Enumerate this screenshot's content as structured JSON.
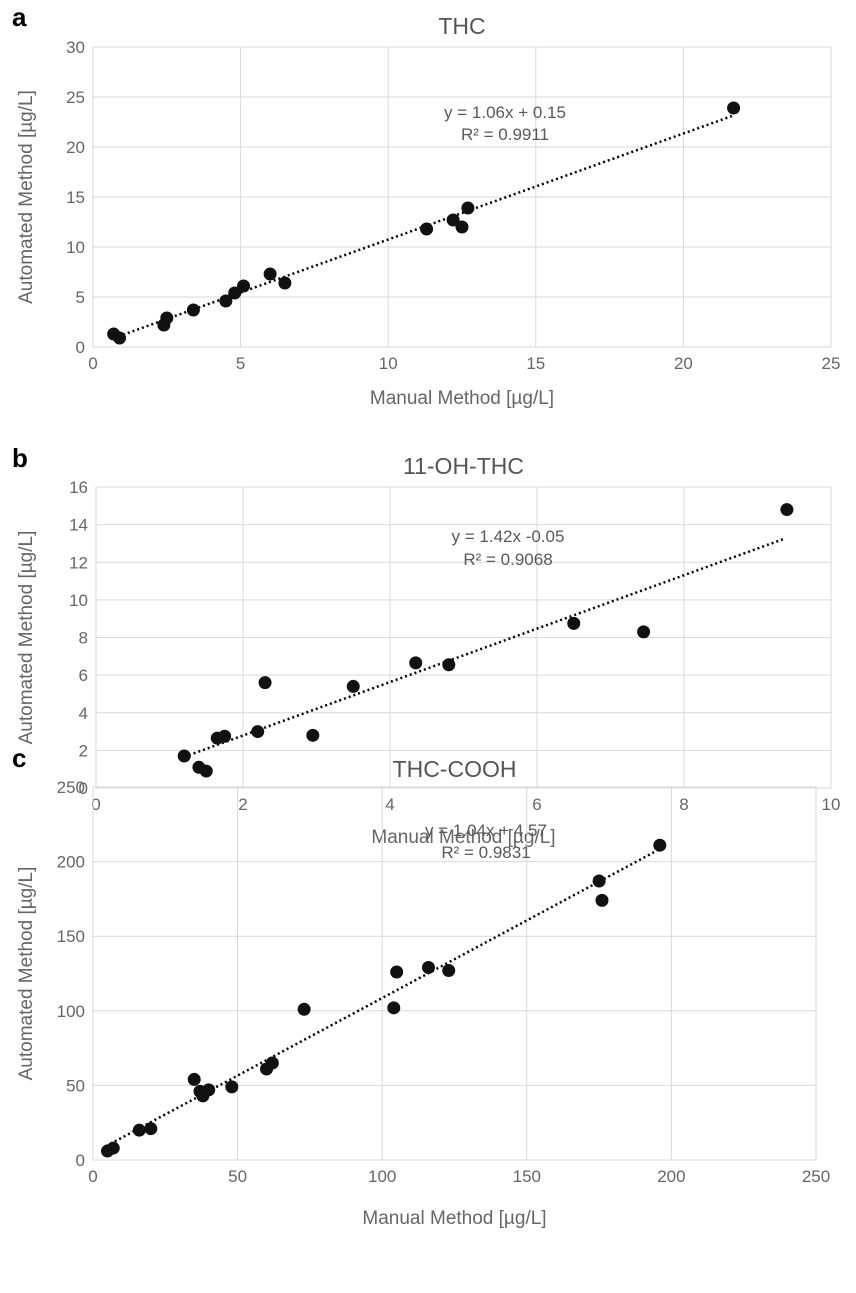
{
  "chart_data": [
    {
      "type": "scatter",
      "panel_label": "a",
      "title": "THC",
      "xlabel": "Manual Method [µg/L]",
      "ylabel": "Automated Method [µg/L]",
      "xlim": [
        0,
        25
      ],
      "ylim": [
        0,
        30
      ],
      "xticks": [
        "0",
        "5",
        "10",
        "15",
        "20",
        "25"
      ],
      "yticks": [
        "0",
        "5",
        "10",
        "15",
        "20",
        "25",
        "30"
      ],
      "grid": true,
      "trendline": {
        "slope": 1.06,
        "intercept": 0.15,
        "x_range": [
          0.7,
          21.7
        ],
        "style": "dotted"
      },
      "equation_lines": [
        "y = 1.06x + 0.15",
        "R² = 0.9911"
      ],
      "marker_color": "#111111",
      "points": [
        {
          "x": 0.7,
          "y": 1.3
        },
        {
          "x": 0.9,
          "y": 0.9
        },
        {
          "x": 2.4,
          "y": 2.2
        },
        {
          "x": 2.5,
          "y": 2.9
        },
        {
          "x": 3.4,
          "y": 3.7
        },
        {
          "x": 4.5,
          "y": 4.6
        },
        {
          "x": 4.8,
          "y": 5.4
        },
        {
          "x": 5.1,
          "y": 6.1
        },
        {
          "x": 6.0,
          "y": 7.3
        },
        {
          "x": 6.5,
          "y": 6.4
        },
        {
          "x": 11.3,
          "y": 11.8
        },
        {
          "x": 12.2,
          "y": 12.7
        },
        {
          "x": 12.5,
          "y": 12.0
        },
        {
          "x": 12.7,
          "y": 13.9
        },
        {
          "x": 21.7,
          "y": 23.9
        }
      ]
    },
    {
      "type": "scatter",
      "panel_label": "b",
      "title": "11-OH-THC",
      "xlabel": "Manual Method [µg/L]",
      "ylabel": "Automated Method [µg/L]",
      "xlim": [
        0,
        10
      ],
      "ylim": [
        0,
        16
      ],
      "xticks": [
        "0",
        "2",
        "4",
        "6",
        "8",
        "10"
      ],
      "yticks": [
        "0",
        "2",
        "4",
        "6",
        "8",
        "10",
        "12",
        "14",
        "16"
      ],
      "grid": true,
      "trendline": {
        "slope": 1.42,
        "intercept": -0.05,
        "x_range": [
          1.2,
          9.35
        ],
        "style": "dotted"
      },
      "equation_lines": [
        "y = 1.42x -0.05",
        "R² = 0.9068"
      ],
      "marker_color": "#111111",
      "points": [
        {
          "x": 1.2,
          "y": 1.7
        },
        {
          "x": 1.4,
          "y": 1.1
        },
        {
          "x": 1.5,
          "y": 0.9
        },
        {
          "x": 1.65,
          "y": 2.65
        },
        {
          "x": 1.75,
          "y": 2.75
        },
        {
          "x": 2.2,
          "y": 3.0
        },
        {
          "x": 2.3,
          "y": 5.6
        },
        {
          "x": 2.95,
          "y": 2.8
        },
        {
          "x": 3.5,
          "y": 5.4
        },
        {
          "x": 4.35,
          "y": 6.65
        },
        {
          "x": 4.8,
          "y": 6.55
        },
        {
          "x": 6.5,
          "y": 8.75
        },
        {
          "x": 7.45,
          "y": 8.3
        },
        {
          "x": 9.4,
          "y": 14.8
        }
      ]
    },
    {
      "type": "scatter",
      "panel_label": "c",
      "title": "THC-COOH",
      "xlabel": "Manual Method [µg/L]",
      "ylabel": "Automated Method [µg/L]",
      "xlim": [
        0,
        250
      ],
      "ylim": [
        0,
        250
      ],
      "xticks": [
        "0",
        "50",
        "100",
        "150",
        "200",
        "250"
      ],
      "yticks": [
        "0",
        "50",
        "100",
        "150",
        "200",
        "250"
      ],
      "grid": true,
      "trendline": {
        "slope": 1.04,
        "intercept": 4.57,
        "x_range": [
          4.5,
          196
        ],
        "style": "dotted"
      },
      "equation_lines": [
        "y = 1.04x + 4.57",
        "R² = 0.9831"
      ],
      "marker_color": "#111111",
      "points": [
        {
          "x": 5,
          "y": 6
        },
        {
          "x": 7,
          "y": 8
        },
        {
          "x": 16,
          "y": 20
        },
        {
          "x": 20,
          "y": 21
        },
        {
          "x": 35,
          "y": 54
        },
        {
          "x": 37,
          "y": 46
        },
        {
          "x": 38,
          "y": 43
        },
        {
          "x": 40,
          "y": 47
        },
        {
          "x": 48,
          "y": 49
        },
        {
          "x": 60,
          "y": 61
        },
        {
          "x": 62,
          "y": 65
        },
        {
          "x": 73,
          "y": 101
        },
        {
          "x": 104,
          "y": 102
        },
        {
          "x": 105,
          "y": 126
        },
        {
          "x": 116,
          "y": 129
        },
        {
          "x": 123,
          "y": 127
        },
        {
          "x": 175,
          "y": 187
        },
        {
          "x": 176,
          "y": 174
        },
        {
          "x": 196,
          "y": 211
        }
      ]
    }
  ]
}
